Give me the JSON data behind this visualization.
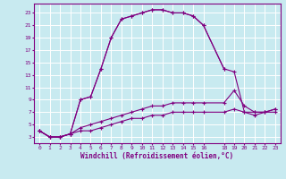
{
  "xlabel": "Windchill (Refroidissement éolien,°C)",
  "background_color": "#c8eaf0",
  "grid_color": "#ffffff",
  "line_color": "#800080",
  "xlim": [
    -0.5,
    23.5
  ],
  "ylim": [
    2.0,
    24.5
  ],
  "xticks": [
    0,
    1,
    2,
    3,
    4,
    5,
    6,
    7,
    8,
    9,
    10,
    11,
    12,
    13,
    14,
    15,
    16,
    18,
    19,
    20,
    21,
    22,
    23
  ],
  "yticks": [
    3,
    5,
    7,
    9,
    11,
    13,
    15,
    17,
    19,
    21,
    23
  ],
  "line1_x": [
    0,
    1,
    2,
    3,
    4,
    5,
    6,
    7,
    8,
    9,
    10,
    11,
    12,
    13,
    14,
    15,
    16,
    18,
    19,
    20,
    21,
    22,
    23
  ],
  "line1_y": [
    4,
    3,
    3,
    3.5,
    4,
    4,
    4.5,
    5,
    5.5,
    6,
    6,
    6.5,
    6.5,
    7,
    7,
    7,
    7,
    7,
    7.5,
    7,
    6.5,
    7,
    7
  ],
  "line2_x": [
    0,
    1,
    2,
    3,
    4,
    5,
    6,
    7,
    8,
    9,
    10,
    11,
    12,
    13,
    14,
    15,
    16,
    18,
    19,
    20,
    21,
    22,
    23
  ],
  "line2_y": [
    4,
    3,
    3,
    3.5,
    4.5,
    5,
    5.5,
    6,
    6.5,
    7,
    7.5,
    8,
    8,
    8.5,
    8.5,
    8.5,
    8.5,
    8.5,
    10.5,
    8,
    7,
    7,
    7.5
  ],
  "line3_x": [
    0,
    1,
    2,
    3,
    4,
    5,
    6,
    7,
    8,
    9,
    10,
    11,
    12,
    13,
    14,
    15,
    16,
    18,
    19,
    20,
    21,
    22,
    23
  ],
  "line3_y": [
    4,
    3,
    3,
    3.5,
    9,
    9.5,
    14,
    19,
    22,
    22.5,
    23,
    23.5,
    23.5,
    23,
    23,
    22.5,
    21,
    14,
    13.5,
    7,
    7,
    7,
    7.5
  ],
  "line4_x": [
    0,
    1,
    2,
    3,
    4,
    5,
    6,
    7,
    8,
    9,
    10,
    11,
    12,
    13,
    14,
    15,
    16,
    18
  ],
  "line4_y": [
    4,
    3,
    3,
    3.5,
    9,
    9.5,
    14,
    19,
    22,
    22.5,
    23,
    23.5,
    23.5,
    23,
    23,
    22.5,
    21,
    14
  ]
}
